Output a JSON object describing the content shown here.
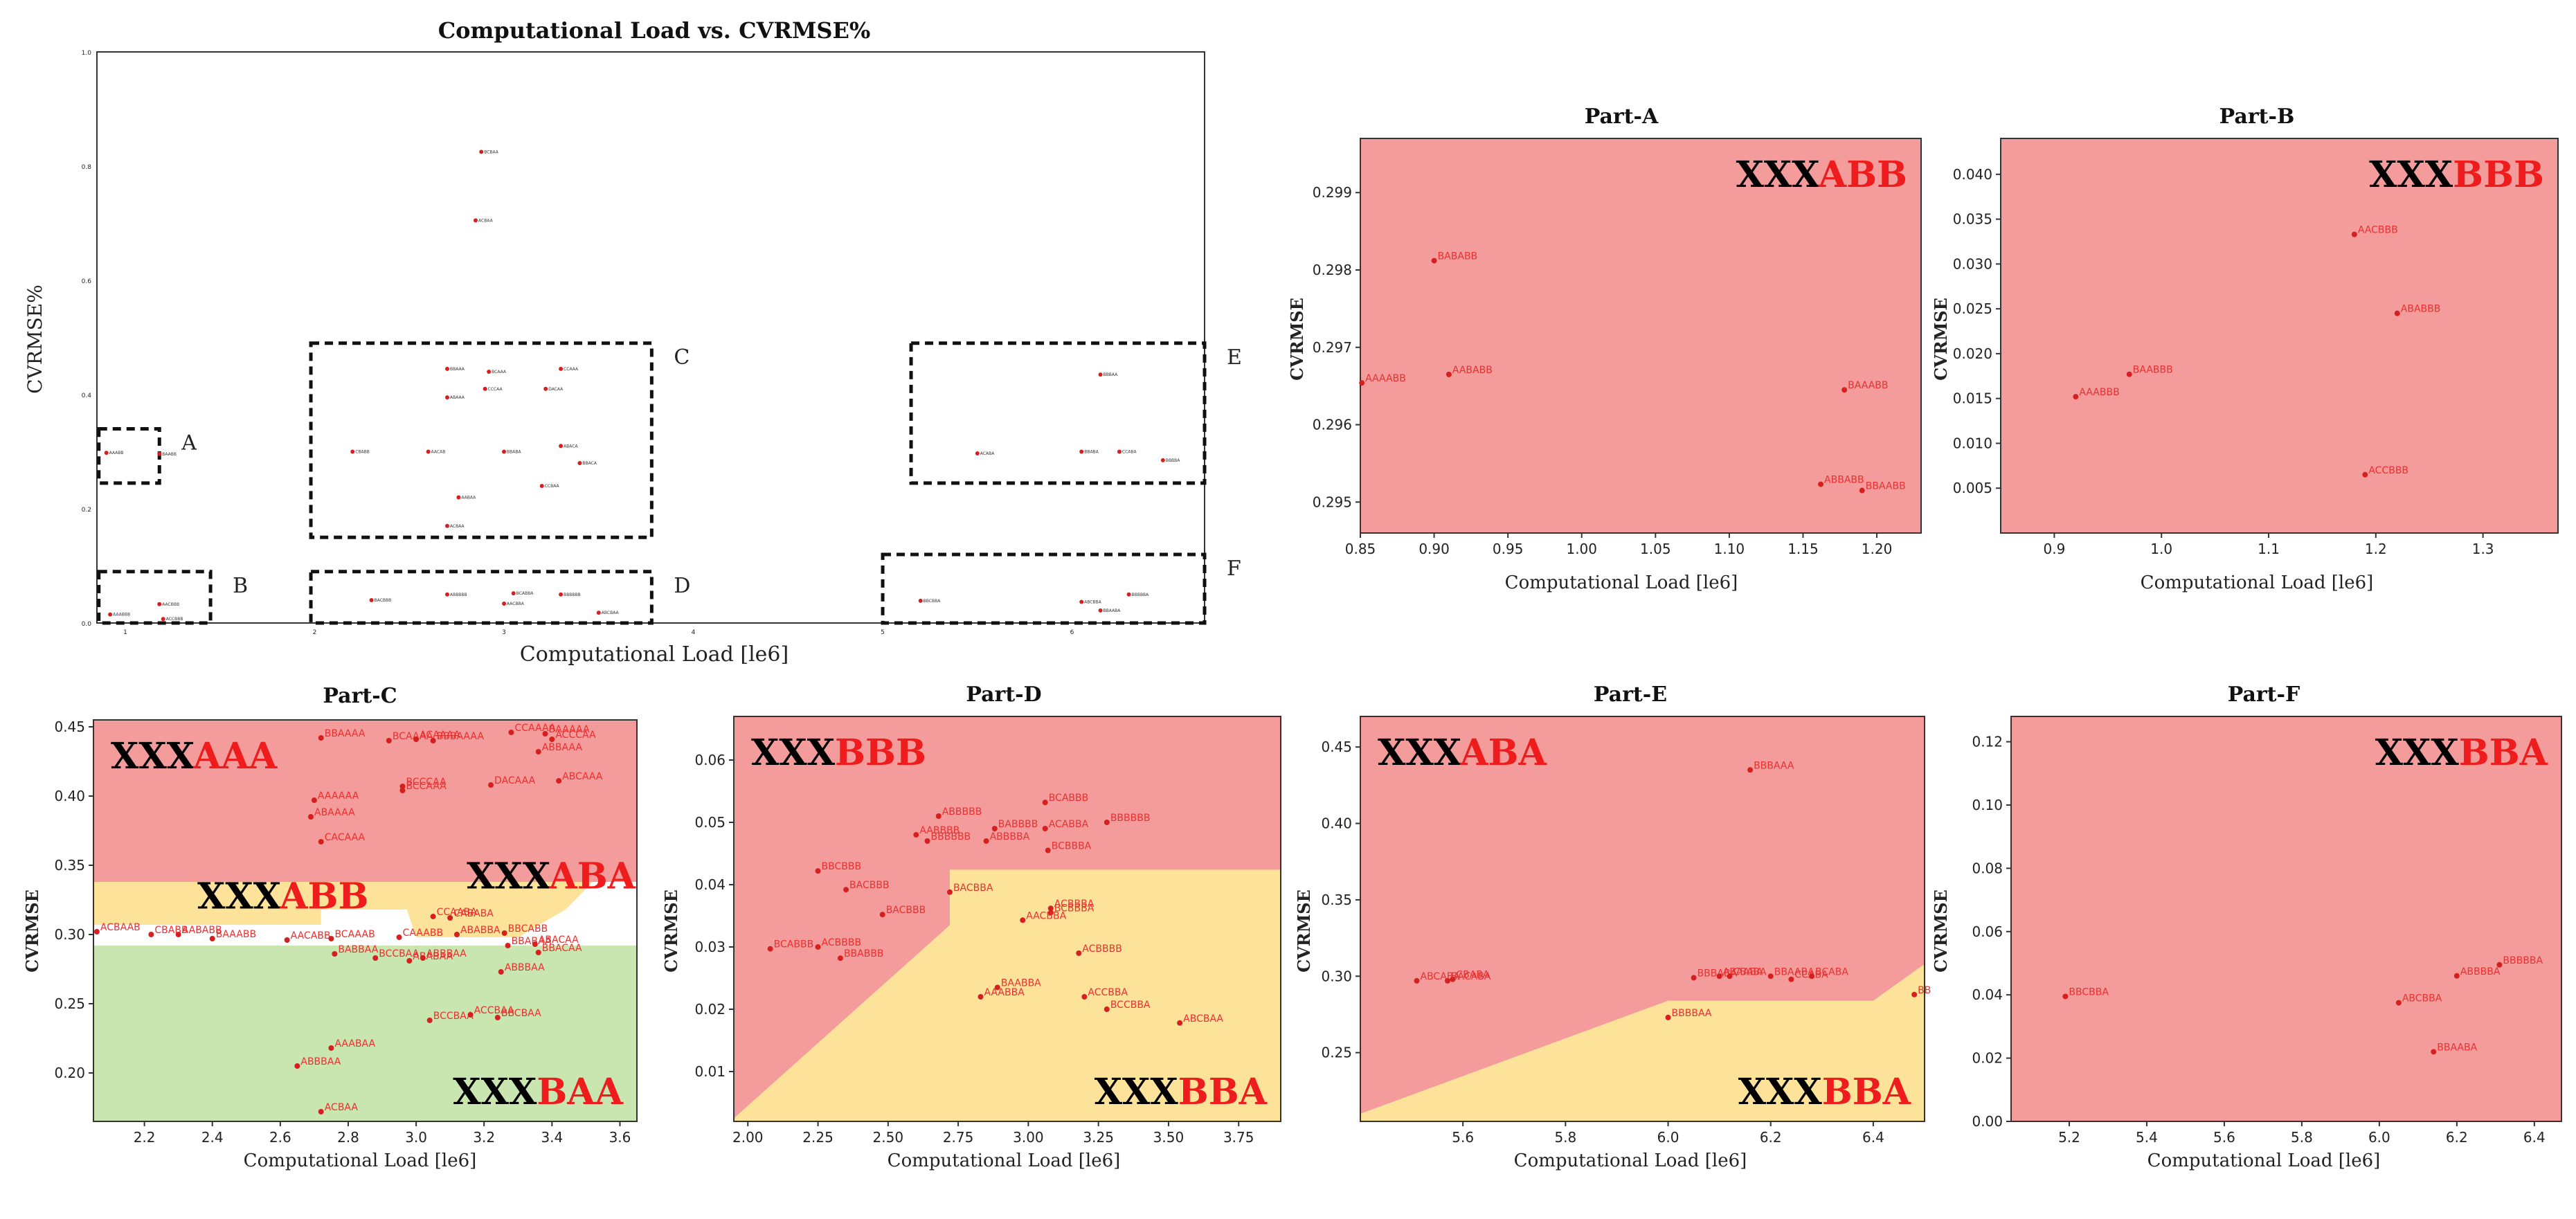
{
  "colors": {
    "red": "#f49b9b",
    "yellow": "#fde39a",
    "green": "#c9e6b0",
    "white": "#ffffff",
    "point": "#d62020",
    "label_red": "#e83030"
  },
  "main": {
    "title": "Computational Load vs. CVRMSE%",
    "xlabel": "Computational Load [le6]",
    "ylabel": "CVRMSE%",
    "xlim": [
      0.85,
      6.7
    ],
    "ylim": [
      0,
      1.0
    ],
    "yticks": [
      "0.0",
      "0.2",
      "0.4",
      "0.6",
      "0.8",
      "1.0"
    ],
    "ytickvals": [
      0,
      0.2,
      0.4,
      0.6,
      0.8,
      1.0
    ],
    "xticks": [
      "1",
      "2",
      "3",
      "4",
      "5",
      "6"
    ],
    "xtickvals": [
      1,
      2,
      3,
      4,
      5,
      6
    ],
    "boxes": [
      {
        "letter": "A",
        "x0": 0.86,
        "x1": 1.18,
        "y0": 0.245,
        "y1": 0.34
      },
      {
        "letter": "B",
        "x0": 0.86,
        "x1": 1.45,
        "y0": 0.0,
        "y1": 0.09
      },
      {
        "letter": "C",
        "x0": 1.98,
        "x1": 3.78,
        "y0": 0.15,
        "y1": 0.49
      },
      {
        "letter": "D",
        "x0": 1.98,
        "x1": 3.78,
        "y0": 0.0,
        "y1": 0.09
      },
      {
        "letter": "E",
        "x0": 5.15,
        "x1": 6.7,
        "y0": 0.245,
        "y1": 0.49
      },
      {
        "letter": "F",
        "x0": 5.0,
        "x1": 6.7,
        "y0": 0.0,
        "y1": 0.12
      }
    ],
    "points": [
      {
        "x": 2.88,
        "y": 0.825,
        "label": "BCBAA"
      },
      {
        "x": 2.85,
        "y": 0.705,
        "label": "ACBAA"
      },
      {
        "x": 6.15,
        "y": 0.435,
        "label": "BBBAA"
      },
      {
        "x": 0.9,
        "y": 0.298,
        "label": "AAABB"
      },
      {
        "x": 1.18,
        "y": 0.296,
        "label": "BAABB"
      },
      {
        "x": 2.7,
        "y": 0.445,
        "label": "BBAAA"
      },
      {
        "x": 2.92,
        "y": 0.44,
        "label": "BCAAA"
      },
      {
        "x": 3.3,
        "y": 0.445,
        "label": "CCAAA"
      },
      {
        "x": 2.7,
        "y": 0.395,
        "label": "ABAAA"
      },
      {
        "x": 2.9,
        "y": 0.41,
        "label": "CCCAA"
      },
      {
        "x": 3.22,
        "y": 0.41,
        "label": "DACAA"
      },
      {
        "x": 2.2,
        "y": 0.3,
        "label": "CBABB"
      },
      {
        "x": 2.6,
        "y": 0.3,
        "label": "AACAB"
      },
      {
        "x": 3.0,
        "y": 0.3,
        "label": "BBABA"
      },
      {
        "x": 3.3,
        "y": 0.31,
        "label": "ABACA"
      },
      {
        "x": 3.4,
        "y": 0.28,
        "label": "BBACA"
      },
      {
        "x": 2.76,
        "y": 0.22,
        "label": "AABAA"
      },
      {
        "x": 2.7,
        "y": 0.17,
        "label": "ACBAA"
      },
      {
        "x": 3.2,
        "y": 0.24,
        "label": "CCBAA"
      },
      {
        "x": 5.5,
        "y": 0.297,
        "label": "ACABA"
      },
      {
        "x": 6.05,
        "y": 0.3,
        "label": "BBABA"
      },
      {
        "x": 6.25,
        "y": 0.3,
        "label": "CCABA"
      },
      {
        "x": 6.48,
        "y": 0.285,
        "label": "BBBBA"
      },
      {
        "x": 0.92,
        "y": 0.015,
        "label": "AAABBB"
      },
      {
        "x": 1.18,
        "y": 0.033,
        "label": "AACBBB"
      },
      {
        "x": 1.2,
        "y": 0.007,
        "label": "ACCBBB"
      },
      {
        "x": 2.3,
        "y": 0.04,
        "label": "BACBBB"
      },
      {
        "x": 2.7,
        "y": 0.05,
        "label": "ABBBBB"
      },
      {
        "x": 3.05,
        "y": 0.052,
        "label": "BCABBA"
      },
      {
        "x": 3.3,
        "y": 0.05,
        "label": "BBBBBB"
      },
      {
        "x": 3.5,
        "y": 0.018,
        "label": "ABCBAA"
      },
      {
        "x": 3.0,
        "y": 0.034,
        "label": "AACBBA"
      },
      {
        "x": 5.2,
        "y": 0.039,
        "label": "BBCBBA"
      },
      {
        "x": 6.05,
        "y": 0.037,
        "label": "ABCBBA"
      },
      {
        "x": 6.3,
        "y": 0.05,
        "label": "BBBBBA"
      },
      {
        "x": 6.15,
        "y": 0.022,
        "label": "BBAABA"
      }
    ]
  },
  "chart_data": [
    {
      "type": "scatter",
      "name": "Part-A",
      "title": "Part-A",
      "xlabel": "Computational Load [le6]",
      "ylabel": "CVRMSE",
      "xlim": [
        0.85,
        1.23
      ],
      "ylim": [
        0.2946,
        0.2997
      ],
      "xticks": [
        "0.85",
        "0.90",
        "0.95",
        "1.00",
        "1.05",
        "1.10",
        "1.15",
        "1.20"
      ],
      "xtickvals": [
        0.85,
        0.9,
        0.95,
        1.0,
        1.05,
        1.1,
        1.15,
        1.2
      ],
      "yticks": [
        "0.295",
        "0.296",
        "0.297",
        "0.298",
        "0.299"
      ],
      "ytickvals": [
        0.295,
        0.296,
        0.297,
        0.298,
        0.299
      ],
      "big_labels": [
        {
          "black": "XXX",
          "red": "ABB",
          "anchor": "top-right"
        }
      ],
      "points": [
        {
          "x": 0.851,
          "y": 0.29654,
          "label": "AAAABB"
        },
        {
          "x": 0.9,
          "y": 0.29812,
          "label": "BABABB"
        },
        {
          "x": 0.91,
          "y": 0.29665,
          "label": "AABABB"
        },
        {
          "x": 1.178,
          "y": 0.29645,
          "label": "BAAABB"
        },
        {
          "x": 1.162,
          "y": 0.29523,
          "label": "ABBABB"
        },
        {
          "x": 1.19,
          "y": 0.29515,
          "label": "BBAABB"
        }
      ]
    },
    {
      "type": "scatter",
      "name": "Part-B",
      "title": "Part-B",
      "xlabel": "Computational Load [le6]",
      "ylabel": "CVRMSE",
      "xlim": [
        0.85,
        1.37
      ],
      "ylim": [
        0.0,
        0.044
      ],
      "xticks": [
        "0.9",
        "1.0",
        "1.1",
        "1.2",
        "1.3"
      ],
      "xtickvals": [
        0.9,
        1.0,
        1.1,
        1.2,
        1.3
      ],
      "yticks": [
        "0.005",
        "0.010",
        "0.015",
        "0.020",
        "0.025",
        "0.030",
        "0.035",
        "0.040"
      ],
      "ytickvals": [
        0.005,
        0.01,
        0.015,
        0.02,
        0.025,
        0.03,
        0.035,
        0.04
      ],
      "big_labels": [
        {
          "black": "XXX",
          "red": "BBB",
          "anchor": "top-right"
        }
      ],
      "points": [
        {
          "x": 0.92,
          "y": 0.0152,
          "label": "AAABBB"
        },
        {
          "x": 0.97,
          "y": 0.0177,
          "label": "BAABBB"
        },
        {
          "x": 1.18,
          "y": 0.0333,
          "label": "AACBBB"
        },
        {
          "x": 1.22,
          "y": 0.0245,
          "label": "ABABBB"
        },
        {
          "x": 1.19,
          "y": 0.0065,
          "label": "ACCBBB"
        }
      ]
    },
    {
      "type": "scatter",
      "name": "Part-C",
      "title": "Part-C",
      "xlabel": "Computational Load [le6]",
      "ylabel": "CVRMSE",
      "xlim": [
        2.05,
        3.65
      ],
      "ylim": [
        0.165,
        0.455
      ],
      "xticks": [
        "2.2",
        "2.4",
        "2.6",
        "2.8",
        "3.0",
        "3.2",
        "3.4",
        "3.6"
      ],
      "xtickvals": [
        2.2,
        2.4,
        2.6,
        2.8,
        3.0,
        3.2,
        3.4,
        3.6
      ],
      "yticks": [
        "0.20",
        "0.25",
        "0.30",
        "0.35",
        "0.40",
        "0.45"
      ],
      "ytickvals": [
        0.2,
        0.25,
        0.3,
        0.35,
        0.4,
        0.45
      ],
      "big_labels": [
        {
          "black": "XXX",
          "red": "AAA",
          "anchor": "top-left"
        },
        {
          "black": "XXX",
          "red": "ABB",
          "anchor": "mid-left"
        },
        {
          "black": "XXX",
          "red": "ABA",
          "anchor": "mid-right"
        },
        {
          "black": "XXX",
          "red": "BAA",
          "anchor": "bottom-right"
        }
      ],
      "points": [
        {
          "x": 2.72,
          "y": 0.442,
          "label": "BBAAAA"
        },
        {
          "x": 2.92,
          "y": 0.44,
          "label": "BCAAAA"
        },
        {
          "x": 3.0,
          "y": 0.441,
          "label": "ACAAAA"
        },
        {
          "x": 3.05,
          "y": 0.44,
          "label": "BBBAAAA"
        },
        {
          "x": 3.28,
          "y": 0.446,
          "label": "CCAAAA"
        },
        {
          "x": 3.38,
          "y": 0.445,
          "label": "BAAAAA"
        },
        {
          "x": 3.4,
          "y": 0.441,
          "label": "ACCCAA"
        },
        {
          "x": 3.36,
          "y": 0.432,
          "label": "ABBAAA"
        },
        {
          "x": 2.7,
          "y": 0.397,
          "label": "AAAAAA"
        },
        {
          "x": 2.69,
          "y": 0.385,
          "label": "ABAAAA"
        },
        {
          "x": 2.96,
          "y": 0.407,
          "label": "BCCCAA"
        },
        {
          "x": 2.96,
          "y": 0.404,
          "label": "BCCAAA"
        },
        {
          "x": 3.22,
          "y": 0.408,
          "label": "DACAAA"
        },
        {
          "x": 3.42,
          "y": 0.411,
          "label": "ABCAAA"
        },
        {
          "x": 2.72,
          "y": 0.367,
          "label": "CACAAA"
        },
        {
          "x": 2.06,
          "y": 0.302,
          "label": "ACBAAB"
        },
        {
          "x": 2.22,
          "y": 0.3,
          "label": "CBABB"
        },
        {
          "x": 2.3,
          "y": 0.3,
          "label": "AABABB"
        },
        {
          "x": 2.4,
          "y": 0.297,
          "label": "BAAABB"
        },
        {
          "x": 2.62,
          "y": 0.296,
          "label": "AACABB"
        },
        {
          "x": 2.75,
          "y": 0.297,
          "label": "BCAAAB"
        },
        {
          "x": 2.95,
          "y": 0.298,
          "label": "CAAABB"
        },
        {
          "x": 3.05,
          "y": 0.313,
          "label": "CCAABA"
        },
        {
          "x": 3.1,
          "y": 0.312,
          "label": "CABABA"
        },
        {
          "x": 3.12,
          "y": 0.3,
          "label": "ABABBA"
        },
        {
          "x": 3.26,
          "y": 0.301,
          "label": "BBCABB"
        },
        {
          "x": 3.27,
          "y": 0.292,
          "label": "BBABAA"
        },
        {
          "x": 3.35,
          "y": 0.293,
          "label": "ABACAA"
        },
        {
          "x": 3.36,
          "y": 0.287,
          "label": "BBACAA"
        },
        {
          "x": 2.76,
          "y": 0.286,
          "label": "BABBAA"
        },
        {
          "x": 2.88,
          "y": 0.283,
          "label": "BCCBAA"
        },
        {
          "x": 2.98,
          "y": 0.281,
          "label": "ABABAA"
        },
        {
          "x": 3.02,
          "y": 0.283,
          "label": "ABBBAA"
        },
        {
          "x": 3.25,
          "y": 0.273,
          "label": "ABBBAA"
        },
        {
          "x": 3.04,
          "y": 0.238,
          "label": "BCCBAA"
        },
        {
          "x": 3.16,
          "y": 0.242,
          "label": "ACCBAA"
        },
        {
          "x": 3.24,
          "y": 0.24,
          "label": "BBCBAA"
        },
        {
          "x": 2.75,
          "y": 0.218,
          "label": "AAABAA"
        },
        {
          "x": 2.65,
          "y": 0.205,
          "label": "ABBBAA"
        },
        {
          "x": 2.72,
          "y": 0.172,
          "label": "ACBAA"
        }
      ]
    },
    {
      "type": "scatter",
      "name": "Part-D",
      "title": "Part-D",
      "xlabel": "Computational Load [le6]",
      "ylabel": "CVRMSE",
      "xlim": [
        1.95,
        3.9
      ],
      "ylim": [
        0.002,
        0.067
      ],
      "xticks": [
        "2.00",
        "2.25",
        "2.50",
        "2.75",
        "3.00",
        "3.25",
        "3.50",
        "3.75"
      ],
      "xtickvals": [
        2.0,
        2.25,
        2.5,
        2.75,
        3.0,
        3.25,
        3.5,
        3.75
      ],
      "yticks": [
        "0.01",
        "0.02",
        "0.03",
        "0.04",
        "0.05",
        "0.06"
      ],
      "ytickvals": [
        0.01,
        0.02,
        0.03,
        0.04,
        0.05,
        0.06
      ],
      "big_labels": [
        {
          "black": "XXX",
          "red": "BBB",
          "anchor": "top-left"
        },
        {
          "black": "XXX",
          "red": "BBA",
          "anchor": "bottom-right"
        }
      ],
      "points": [
        {
          "x": 3.06,
          "y": 0.0532,
          "label": "BCABBB"
        },
        {
          "x": 2.68,
          "y": 0.051,
          "label": "ABBBBB"
        },
        {
          "x": 2.88,
          "y": 0.049,
          "label": "BABBBB"
        },
        {
          "x": 3.06,
          "y": 0.049,
          "label": "ACABBA"
        },
        {
          "x": 3.28,
          "y": 0.05,
          "label": "BBBBBB"
        },
        {
          "x": 2.6,
          "y": 0.048,
          "label": "AABBBB"
        },
        {
          "x": 2.64,
          "y": 0.047,
          "label": "BBBBBB"
        },
        {
          "x": 2.85,
          "y": 0.047,
          "label": "ABBBBA"
        },
        {
          "x": 3.07,
          "y": 0.0455,
          "label": "BCBBBA"
        },
        {
          "x": 2.25,
          "y": 0.0422,
          "label": "BBCBBB"
        },
        {
          "x": 2.35,
          "y": 0.0392,
          "label": "BACBBB"
        },
        {
          "x": 2.48,
          "y": 0.0352,
          "label": "BACBBB"
        },
        {
          "x": 2.72,
          "y": 0.0388,
          "label": "BACBBA"
        },
        {
          "x": 3.08,
          "y": 0.0362,
          "label": "ACBBBA"
        },
        {
          "x": 3.08,
          "y": 0.0355,
          "label": "BCBBBA"
        },
        {
          "x": 2.98,
          "y": 0.0343,
          "label": "AACBBA"
        },
        {
          "x": 2.08,
          "y": 0.0297,
          "label": "BCABBB"
        },
        {
          "x": 2.25,
          "y": 0.03,
          "label": "ACBBBB"
        },
        {
          "x": 2.33,
          "y": 0.0282,
          "label": "BBABBB"
        },
        {
          "x": 3.18,
          "y": 0.029,
          "label": "ACBBBB"
        },
        {
          "x": 2.89,
          "y": 0.0235,
          "label": "BAABBA"
        },
        {
          "x": 2.83,
          "y": 0.022,
          "label": "AAABBA"
        },
        {
          "x": 3.2,
          "y": 0.022,
          "label": "ACCBBA"
        },
        {
          "x": 3.28,
          "y": 0.02,
          "label": "BCCBBA"
        },
        {
          "x": 3.54,
          "y": 0.0178,
          "label": "ABCBAA"
        }
      ]
    },
    {
      "type": "scatter",
      "name": "Part-E",
      "title": "Part-E",
      "xlabel": "Computational Load [le6]",
      "ylabel": "CVRMSE",
      "xlim": [
        5.4,
        6.5
      ],
      "ylim": [
        0.205,
        0.47
      ],
      "xticks": [
        "5.6",
        "5.8",
        "6.0",
        "6.2",
        "6.4"
      ],
      "xtickvals": [
        5.6,
        5.8,
        6.0,
        6.2,
        6.4
      ],
      "yticks": [
        "0.25",
        "0.30",
        "0.35",
        "0.40",
        "0.45"
      ],
      "ytickvals": [
        0.25,
        0.3,
        0.35,
        0.4,
        0.45
      ],
      "big_labels": [
        {
          "black": "XXX",
          "red": "ABA",
          "anchor": "top-left"
        },
        {
          "black": "XXX",
          "red": "BBA",
          "anchor": "bottom-right"
        }
      ],
      "points": [
        {
          "x": 6.16,
          "y": 0.435,
          "label": "BBBAAA"
        },
        {
          "x": 5.51,
          "y": 0.297,
          "label": "ABCABA"
        },
        {
          "x": 5.57,
          "y": 0.297,
          "label": "BACABA"
        },
        {
          "x": 5.58,
          "y": 0.298,
          "label": "CBABA"
        },
        {
          "x": 6.05,
          "y": 0.299,
          "label": "BBBABA"
        },
        {
          "x": 6.1,
          "y": 0.3,
          "label": "ABAABA"
        },
        {
          "x": 6.12,
          "y": 0.3,
          "label": "CBABA"
        },
        {
          "x": 6.2,
          "y": 0.3,
          "label": "BBAABA"
        },
        {
          "x": 6.24,
          "y": 0.298,
          "label": "CCABA"
        },
        {
          "x": 6.28,
          "y": 0.3,
          "label": "BCABA"
        },
        {
          "x": 6.0,
          "y": 0.273,
          "label": "BBBBAA"
        },
        {
          "x": 6.48,
          "y": 0.288,
          "label": "BBBBBA"
        }
      ]
    },
    {
      "type": "scatter",
      "name": "Part-F",
      "title": "Part-F",
      "xlabel": "Computational Load [le6]",
      "ylabel": "CVRMSE",
      "xlim": [
        5.05,
        6.47
      ],
      "ylim": [
        0.0,
        0.128
      ],
      "xticks": [
        "5.2",
        "5.4",
        "5.6",
        "5.8",
        "6.0",
        "6.2",
        "6.4"
      ],
      "xtickvals": [
        5.2,
        5.4,
        5.6,
        5.8,
        6.0,
        6.2,
        6.4
      ],
      "yticks": [
        "0.00",
        "0.02",
        "0.04",
        "0.06",
        "0.08",
        "0.10",
        "0.12"
      ],
      "ytickvals": [
        0.0,
        0.02,
        0.04,
        0.06,
        0.08,
        0.1,
        0.12
      ],
      "big_labels": [
        {
          "black": "XXX",
          "red": "BBA",
          "anchor": "top-right"
        }
      ],
      "points": [
        {
          "x": 5.19,
          "y": 0.0395,
          "label": "BBCBBA"
        },
        {
          "x": 6.05,
          "y": 0.0375,
          "label": "ABCBBA"
        },
        {
          "x": 6.2,
          "y": 0.046,
          "label": "ABBBBA"
        },
        {
          "x": 6.31,
          "y": 0.0495,
          "label": "BBBBBA"
        },
        {
          "x": 6.14,
          "y": 0.022,
          "label": "BBAABA"
        }
      ]
    }
  ]
}
